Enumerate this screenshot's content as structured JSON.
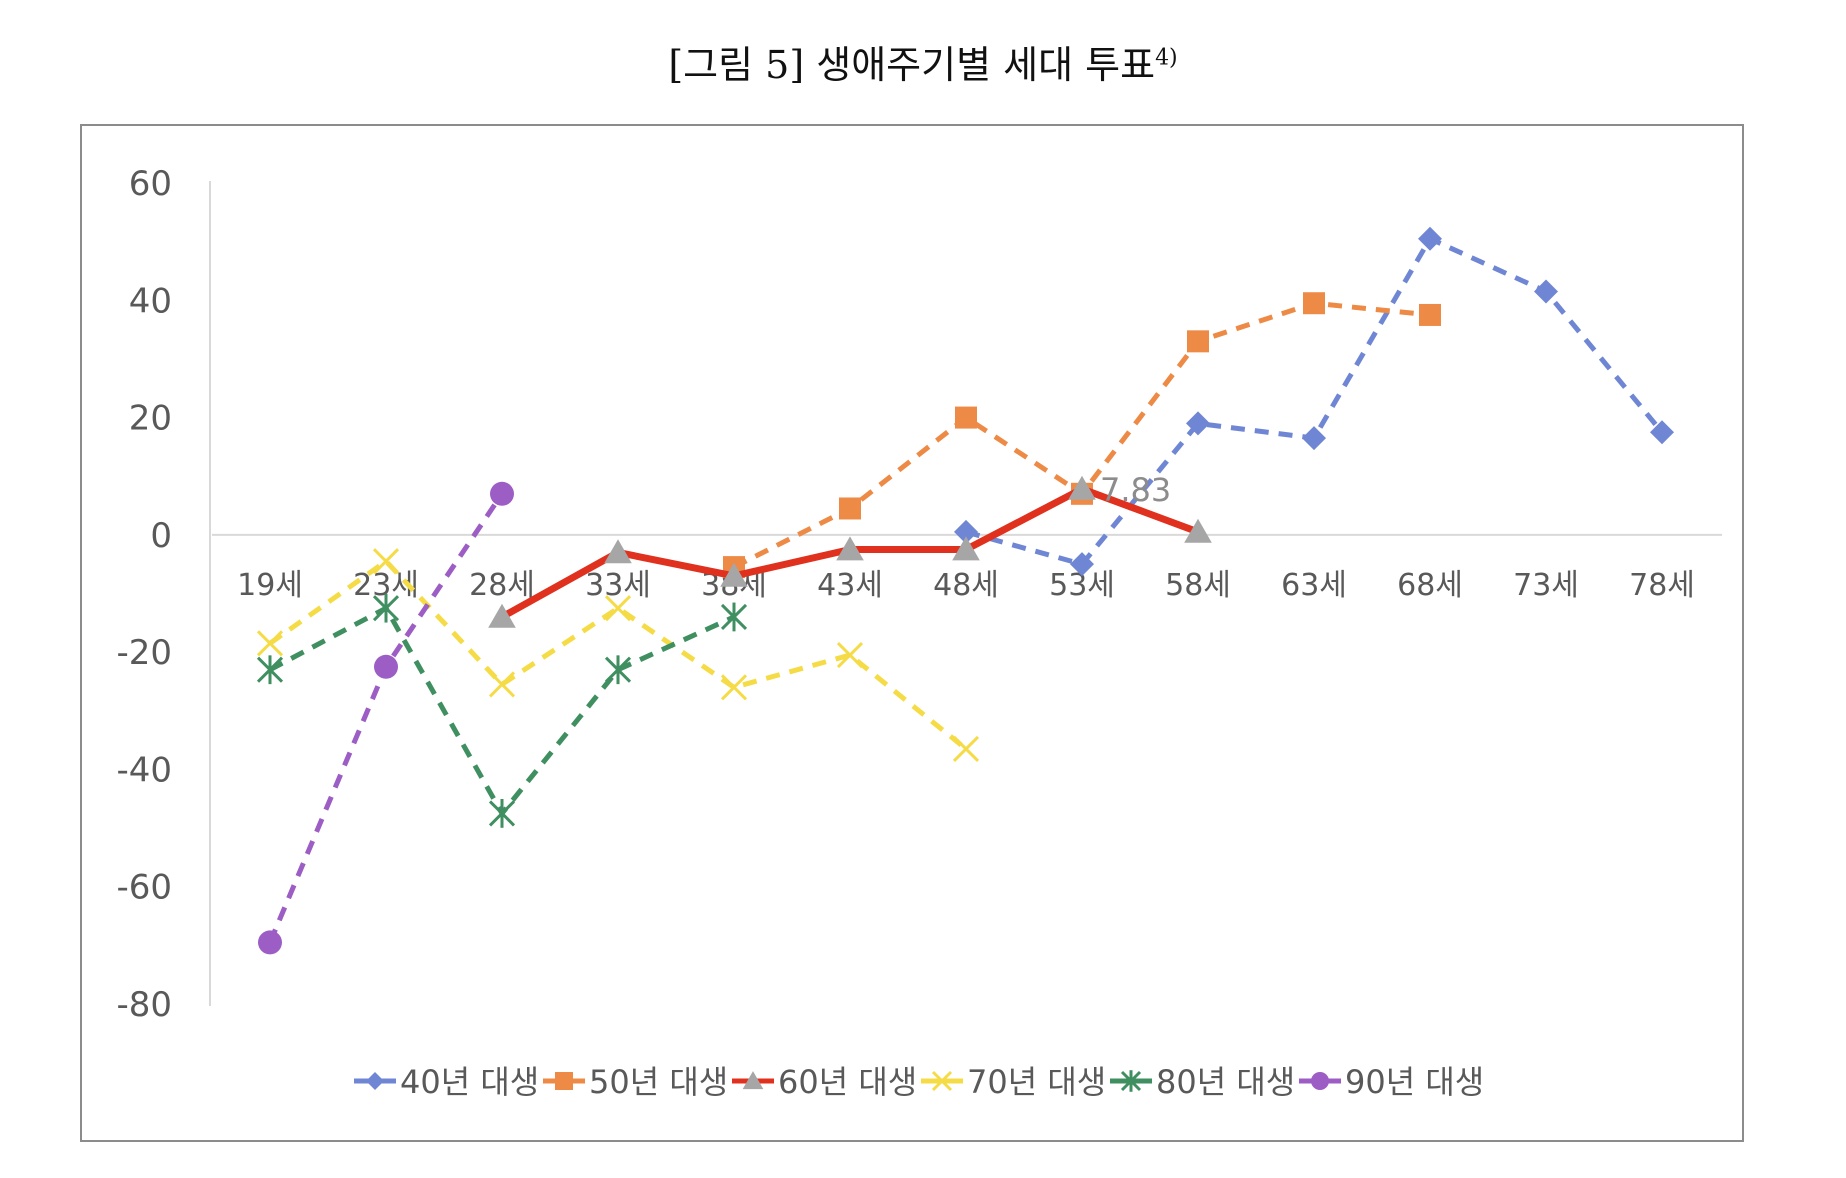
{
  "figure": {
    "title_main": "[그림 5] 생애주기별 세대 투표",
    "title_footnote": "4)"
  },
  "chart_data": {
    "type": "line",
    "title": "",
    "xlabel": "",
    "ylabel": "",
    "categories": [
      "19세",
      "23세",
      "28세",
      "33세",
      "38세",
      "43세",
      "48세",
      "53세",
      "58세",
      "63세",
      "68세",
      "73세",
      "78세"
    ],
    "ylim": [
      -80,
      60
    ],
    "yticks": [
      60,
      40,
      20,
      0,
      -20,
      -40,
      -60,
      -80
    ],
    "grid": false,
    "legend_position": "bottom",
    "series": [
      {
        "name": "40년 대생",
        "color": "#6f86d4",
        "marker": "diamond",
        "dashed": true,
        "values": [
          null,
          null,
          null,
          null,
          null,
          null,
          0.5,
          -5,
          19,
          16.5,
          50.5,
          41.5,
          17.5
        ]
      },
      {
        "name": "50년 대생",
        "color": "#ed8a45",
        "marker": "square",
        "dashed": true,
        "values": [
          null,
          null,
          null,
          null,
          -5.5,
          4.5,
          20,
          7,
          33,
          39.5,
          37.5,
          null,
          null
        ]
      },
      {
        "name": "60년 대생",
        "color": "#e0301e",
        "marker": "triangle",
        "marker_color": "#a6a6a6",
        "dashed": false,
        "values": [
          null,
          null,
          -14,
          -3,
          -7,
          -2.5,
          -2.5,
          7.83,
          0.5,
          null,
          null,
          null,
          null
        ]
      },
      {
        "name": "70년 대생",
        "color": "#f5dc47",
        "marker": "x",
        "dashed": true,
        "values": [
          -18.5,
          -4.5,
          -25.5,
          -12.5,
          -26,
          -20.5,
          -36.5,
          null,
          null,
          null,
          null,
          null,
          null
        ]
      },
      {
        "name": "80년 대생",
        "color": "#3f8f60",
        "marker": "star",
        "dashed": true,
        "values": [
          -23,
          -12.5,
          -47.5,
          -23,
          -14,
          null,
          null,
          null,
          null,
          null,
          null,
          null,
          null
        ]
      },
      {
        "name": "90년 대생",
        "color": "#9c5dc4",
        "marker": "circle",
        "dashed": true,
        "values": [
          -69.5,
          -22.5,
          7,
          null,
          null,
          null,
          null,
          null,
          null,
          null,
          null,
          null,
          null
        ]
      }
    ],
    "annotations": [
      {
        "series": "60년 대생",
        "category": "53세",
        "text": "7.83"
      }
    ]
  }
}
